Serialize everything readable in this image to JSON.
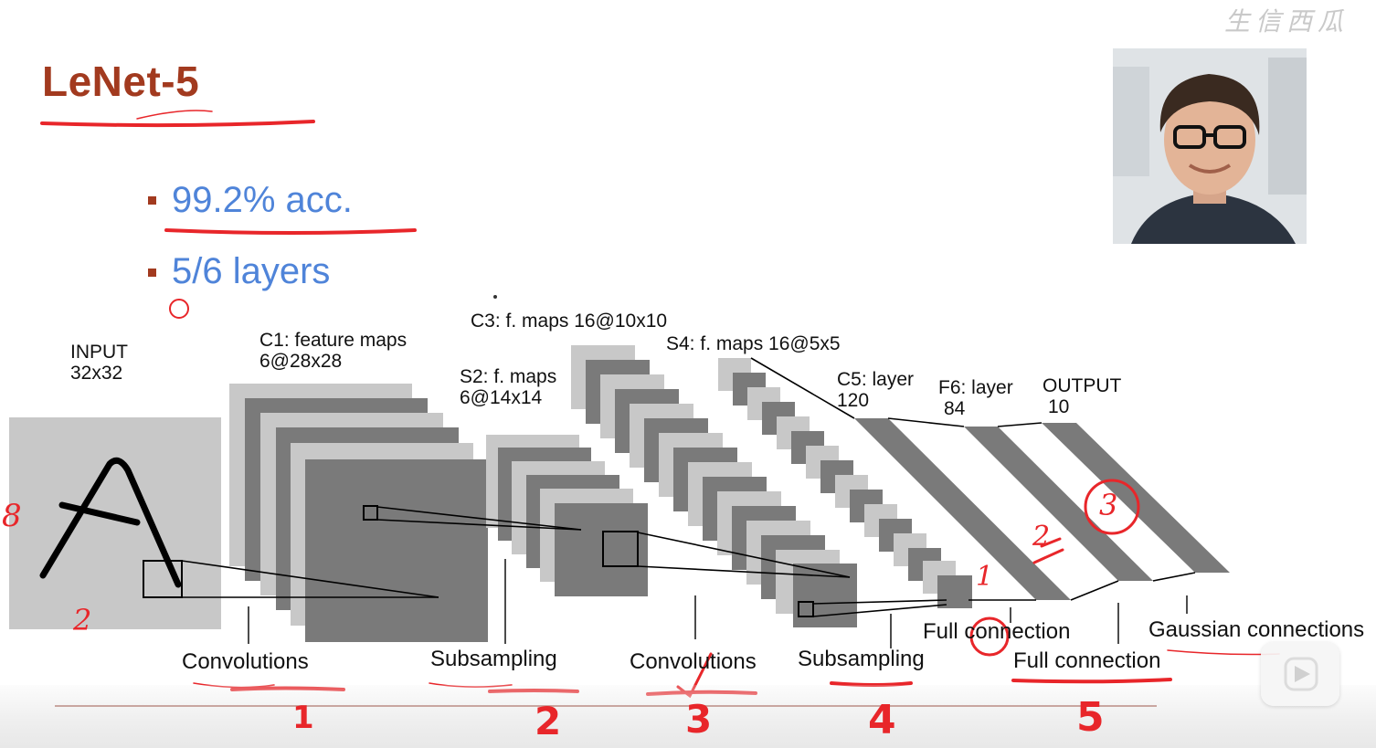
{
  "slide": {
    "title": "LeNet-5",
    "bullets": [
      "99.2% acc.",
      "5/6 layers"
    ],
    "watermark": "生信西瓜"
  },
  "diagram": {
    "labels": {
      "input": [
        "INPUT",
        "32x32"
      ],
      "c1": [
        "C1: feature maps",
        "6@28x28"
      ],
      "s2": [
        "S2: f. maps",
        "6@14x14"
      ],
      "c3": "C3: f. maps 16@10x10",
      "s4": "S4: f. maps 16@5x5",
      "c5": [
        "C5: layer",
        "120"
      ],
      "f6": [
        "F6: layer",
        "84"
      ],
      "output": [
        "OUTPUT",
        "10"
      ]
    },
    "operations": [
      "Convolutions",
      "Subsampling",
      "Convolutions",
      "Subsampling",
      "Full connection",
      "Full connection",
      "Gaussian connections"
    ]
  },
  "annotations": {
    "step_numbers": [
      "1",
      "2",
      "3",
      "4",
      "5"
    ],
    "marks": [
      "8",
      "2",
      "1",
      "2",
      "3"
    ]
  },
  "colors": {
    "title": "#a23a1f",
    "bullet_text": "#4f84d9",
    "annotation_red": "#e8262a",
    "map_light": "#c8c8c8",
    "map_dark": "#7a7a7a"
  }
}
